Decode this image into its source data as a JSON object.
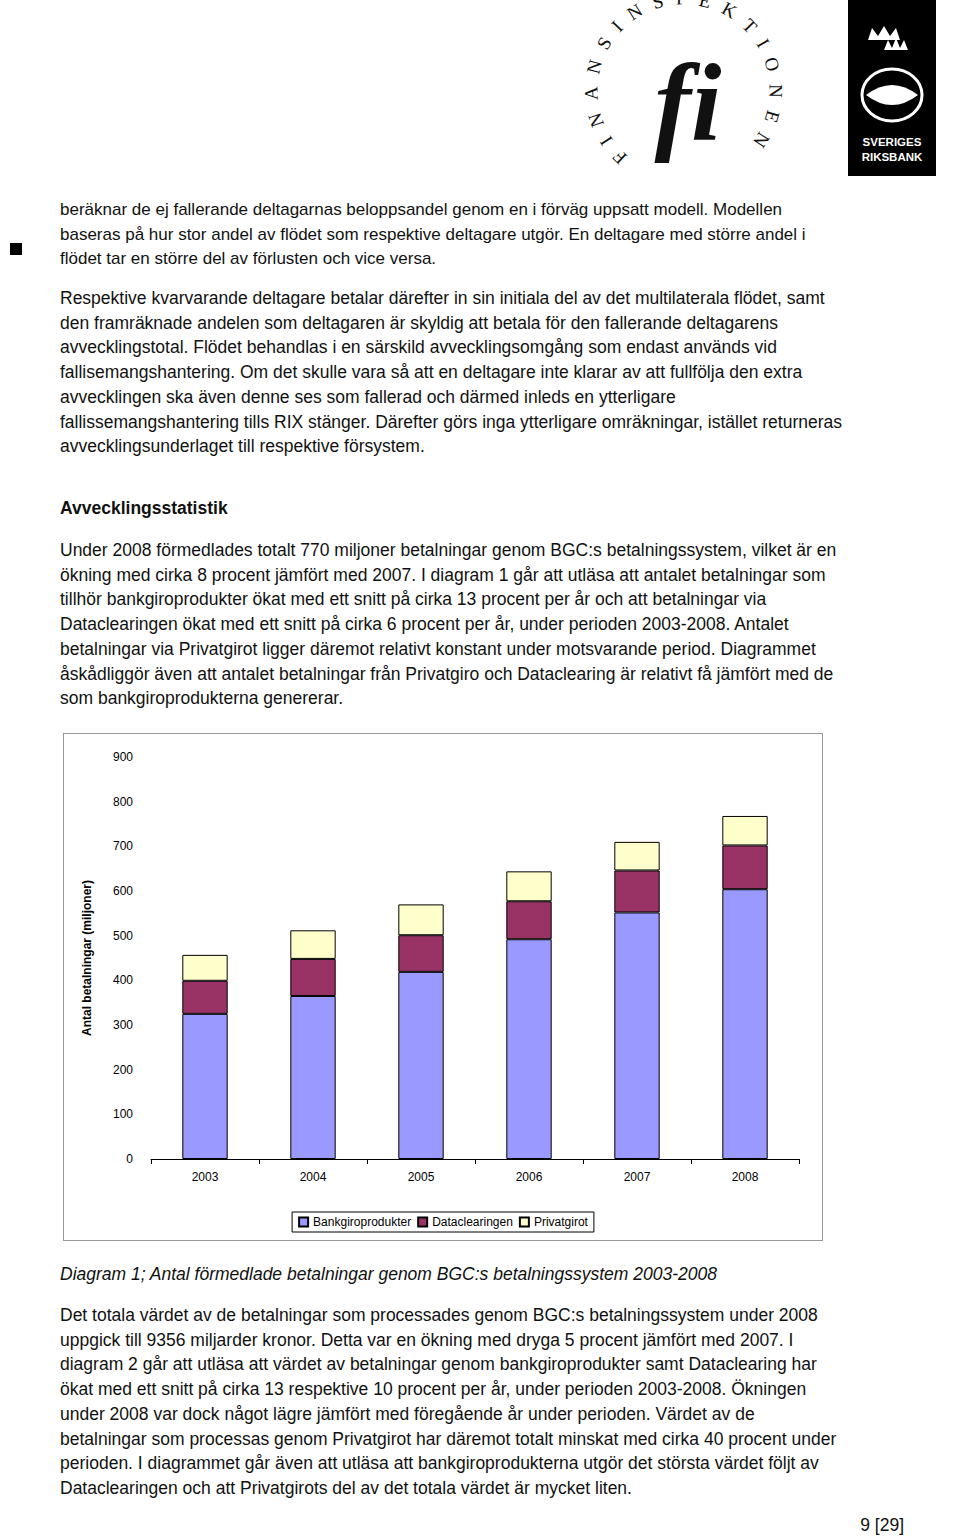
{
  "header": {
    "logo_left_ring": "FINANSINSPEKTIONEN",
    "logo_left_mark": "fi",
    "logo_right": [
      "SVERIGES",
      "RIKSBANK"
    ]
  },
  "paragraphs_top": [
    [
      "beräknar de ej fallerande deltagarnas beloppsandel genom en i förväg uppsatt modell. Modellen",
      "baseras på hur stor andel av flödet som respektive deltagare utgör. En deltagare med större andel i",
      "flödet tar en större del av förlusten och vice versa."
    ],
    [
      "Respektive kvarvarande deltagare betalar därefter in sin initiala del av det multilaterala flödet, samt",
      "den framräknade andelen som deltagaren är skyldig att betala för den fallerande deltagarens",
      "avvecklingstotal. Flödet behandlas i en särskild avvecklingsomgång som endast används vid",
      "fallisemangshantering. Om det skulle vara så att en deltagare inte klarar av att fullfölja den extra",
      "avvecklingen ska även denne ses som fallerad och därmed inleds en ytterligare",
      "fallissemangshantering tills RIX stänger. Därefter görs inga ytterligare omräkningar, istället returneras",
      "avvecklingsunderlaget till respektive försystem."
    ]
  ],
  "heading": "Avvecklingsstatistik",
  "paragraph_stats": [
    "Under 2008 förmedlades totalt 770 miljoner betalningar genom BGC:s betalningssystem, vilket är en",
    "ökning med cirka 8 procent jämfört med 2007. I diagram 1 går att utläsa att antalet betalningar som",
    "tillhör bankgiroprodukter ökat med ett snitt på cirka 13 procent per år och att betalningar via",
    "Dataclearingen ökat med ett snitt på cirka 6 procent per år, under perioden 2003-2008. Antalet",
    "betalningar via Privatgirot ligger däremot relativt konstant under motsvarande period. Diagrammet",
    "åskådliggör även att antalet betalningar från Privatgiro och Dataclearing är relativt få jämfört med de",
    "som bankgiroprodukterna genererar."
  ],
  "chart_data": {
    "type": "bar",
    "stacked": true,
    "categories": [
      "2003",
      "2004",
      "2005",
      "2006",
      "2007",
      "2008"
    ],
    "y_label": "Antal betalningar (miljoner)",
    "series": [
      {
        "name": "Bankgiroprodukter",
        "color": "#9999ff",
        "values": [
          325,
          365,
          419,
          492,
          552,
          604
        ]
      },
      {
        "name": "Dataclearingen",
        "color": "#993366",
        "values": [
          74,
          83,
          82,
          85,
          94,
          98
        ]
      },
      {
        "name": "Privatgirot",
        "color": "#ffffcc",
        "values": [
          58,
          64,
          69,
          67,
          64,
          66
        ]
      }
    ],
    "ylim": [
      0,
      900
    ],
    "yticks": [
      0,
      100,
      200,
      300,
      400,
      500,
      600,
      700,
      800,
      900
    ],
    "grid": false,
    "legend": "bottom"
  },
  "caption": "Diagram 1; Antal förmedlade betalningar genom BGC:s betalningssystem 2003-2008",
  "paragraph_bottom": [
    "Det totala värdet av de betalningar som processades genom BGC:s betalningssystem under 2008",
    "uppgick till 9356 miljarder kronor. Detta var en ökning med dryga 5 procent jämfört med 2007. I",
    "diagram 2 går att utläsa att värdet av betalningar genom bankgiroprodukter samt Dataclearing har",
    "ökat med ett snitt på cirka 13 respektive 10 procent per år, under perioden 2003-2008. Ökningen",
    "under 2008 var dock något lägre jämfört med föregående år under perioden. Värdet av de",
    "betalningar som processas genom Privatgirot har däremot totalt minskat med cirka 40 procent under",
    "perioden. I diagrammet går även att utläsa att bankgiroprodukterna utgör det största värdet följt av",
    "Dataclearingen och att Privatgirots del av det totala värdet är mycket liten."
  ],
  "page_number": "9 [29]"
}
